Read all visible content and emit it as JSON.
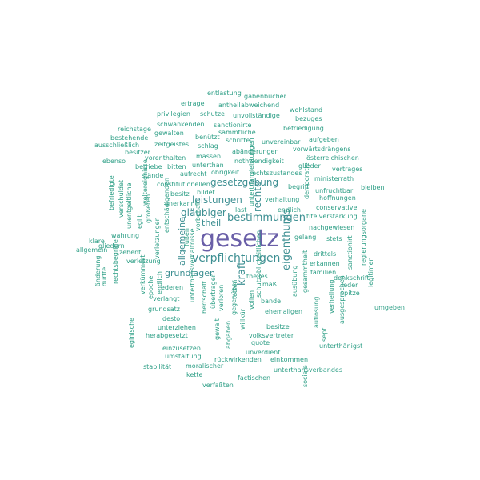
{
  "colors": {
    "primary": "#6a5fa8",
    "secondary": "#3d8f92",
    "default": "#2c9e85",
    "background": "#ffffff"
  },
  "words": [
    {
      "text": "gesetz",
      "color": "primary"
    },
    {
      "text": "verpflichtungen",
      "color": "secondary"
    },
    {
      "text": "bestimmungen",
      "color": "secondary"
    },
    {
      "text": "eigenthums",
      "color": "secondary"
    },
    {
      "text": "gesetzgebung",
      "color": "secondary"
    },
    {
      "text": "leistungen",
      "color": "secondary"
    },
    {
      "text": "gläubiger",
      "color": "secondary"
    },
    {
      "text": "kraft",
      "color": "secondary"
    },
    {
      "text": "rechte",
      "color": "secondary"
    },
    {
      "text": "grundlagen",
      "color": "secondary"
    },
    {
      "text": "allgemeine",
      "color": "secondary"
    },
    {
      "text": "theil",
      "color": "secondary"
    },
    {
      "text": "entlastung",
      "color": "default"
    },
    {
      "text": "gabenbücher",
      "color": "default"
    },
    {
      "text": "ertrage",
      "color": "default"
    },
    {
      "text": "antheil",
      "color": "default"
    },
    {
      "text": "abweichend",
      "color": "default"
    },
    {
      "text": "wohlstand",
      "color": "default"
    },
    {
      "text": "privilegien",
      "color": "default"
    },
    {
      "text": "schutze",
      "color": "default"
    },
    {
      "text": "unvollständige",
      "color": "default"
    },
    {
      "text": "bezuges",
      "color": "default"
    },
    {
      "text": "schwankenden",
      "color": "default"
    },
    {
      "text": "sanctionirte",
      "color": "default"
    },
    {
      "text": "reichstage",
      "color": "default"
    },
    {
      "text": "gewalten",
      "color": "default"
    },
    {
      "text": "sämmtliche",
      "color": "default"
    },
    {
      "text": "befriedigung",
      "color": "default"
    },
    {
      "text": "bestehende",
      "color": "default"
    },
    {
      "text": "benützt",
      "color": "default"
    },
    {
      "text": "schritte",
      "color": "default"
    },
    {
      "text": "unvereinbar",
      "color": "default"
    },
    {
      "text": "aufgeben",
      "color": "default"
    },
    {
      "text": "ausschließlich",
      "color": "default"
    },
    {
      "text": "zeitgeistes",
      "color": "default"
    },
    {
      "text": "schlag",
      "color": "default"
    },
    {
      "text": "vorwärtsdrängens",
      "color": "default"
    },
    {
      "text": "besitzer",
      "color": "default"
    },
    {
      "text": "abänderungen",
      "color": "default"
    },
    {
      "text": "österreichischen",
      "color": "default"
    },
    {
      "text": "ebenso",
      "color": "default"
    },
    {
      "text": "vorenthalten",
      "color": "default"
    },
    {
      "text": "massen",
      "color": "default"
    },
    {
      "text": "nothwendigkeit",
      "color": "default"
    },
    {
      "text": "glieder",
      "color": "default"
    },
    {
      "text": "betriebe",
      "color": "default"
    },
    {
      "text": "bitten",
      "color": "default"
    },
    {
      "text": "unterthan",
      "color": "default"
    },
    {
      "text": "vertrages",
      "color": "default"
    },
    {
      "text": "stände",
      "color": "default"
    },
    {
      "text": "aufrecht",
      "color": "default"
    },
    {
      "text": "obrigkeit",
      "color": "default"
    },
    {
      "text": "rechtszustandes",
      "color": "default"
    },
    {
      "text": "ministerrath",
      "color": "default"
    },
    {
      "text": "constitutionellen",
      "color": "default"
    },
    {
      "text": "begriff",
      "color": "default"
    },
    {
      "text": "unfruchtbar",
      "color": "default"
    },
    {
      "text": "bleiben",
      "color": "default"
    },
    {
      "text": "bildet",
      "color": "default"
    },
    {
      "text": "besitz",
      "color": "default"
    },
    {
      "text": "verhaltung",
      "color": "default"
    },
    {
      "text": "hoffnungen",
      "color": "default"
    },
    {
      "text": "enerkannt",
      "color": "default"
    },
    {
      "text": "conservative",
      "color": "default"
    },
    {
      "text": "endlich",
      "color": "default"
    },
    {
      "text": "last",
      "color": "default"
    },
    {
      "text": "titelverstärkung",
      "color": "default"
    },
    {
      "text": "nachgewiesen",
      "color": "default"
    },
    {
      "text": "gelang",
      "color": "default"
    },
    {
      "text": "stets",
      "color": "default"
    },
    {
      "text": "wahrung",
      "color": "default"
    },
    {
      "text": "klare",
      "color": "default"
    },
    {
      "text": "allgemein",
      "color": "default"
    },
    {
      "text": "zehent",
      "color": "default"
    },
    {
      "text": "verletzung",
      "color": "default"
    },
    {
      "text": "drittels",
      "color": "default"
    },
    {
      "text": "erkannen",
      "color": "default"
    },
    {
      "text": "familien",
      "color": "default"
    },
    {
      "text": "theiles",
      "color": "default"
    },
    {
      "text": "denkschrift",
      "color": "default"
    },
    {
      "text": "maß",
      "color": "default"
    },
    {
      "text": "leder",
      "color": "default"
    },
    {
      "text": "ederen",
      "color": "default"
    },
    {
      "text": "verlangt",
      "color": "default"
    },
    {
      "text": "spitze",
      "color": "default"
    },
    {
      "text": "bande",
      "color": "default"
    },
    {
      "text": "umgeben",
      "color": "default"
    },
    {
      "text": "grundsatz",
      "color": "default"
    },
    {
      "text": "desto",
      "color": "default"
    },
    {
      "text": "ehemaligen",
      "color": "default"
    },
    {
      "text": "unterziehen",
      "color": "default"
    },
    {
      "text": "besitze",
      "color": "default"
    },
    {
      "text": "herabgesetzt",
      "color": "default"
    },
    {
      "text": "quote",
      "color": "default"
    },
    {
      "text": "einzusetzen",
      "color": "default"
    },
    {
      "text": "unterthänigst",
      "color": "default"
    },
    {
      "text": "umstaltung",
      "color": "default"
    },
    {
      "text": "unverdient",
      "color": "default"
    },
    {
      "text": "volksvertreter",
      "color": "default"
    },
    {
      "text": "rückwirkenden",
      "color": "default"
    },
    {
      "text": "einkommen",
      "color": "default"
    },
    {
      "text": "stabilität",
      "color": "default"
    },
    {
      "text": "moralischer",
      "color": "default"
    },
    {
      "text": "unterthansverbandes",
      "color": "default"
    },
    {
      "text": "kette",
      "color": "default"
    },
    {
      "text": "factischen",
      "color": "default"
    },
    {
      "text": "verfaßten",
      "color": "default"
    },
    {
      "text": "gliedern",
      "color": "default"
    },
    {
      "text": "befriedigte",
      "color": "default"
    },
    {
      "text": "verschuldet",
      "color": "default"
    },
    {
      "text": "unentgeltliche",
      "color": "default"
    },
    {
      "text": "weltereignisse",
      "color": "default"
    },
    {
      "text": "egilt",
      "color": "default"
    },
    {
      "text": "größeren",
      "color": "default"
    },
    {
      "text": "verletzungen",
      "color": "default"
    },
    {
      "text": "entschädigenden",
      "color": "default"
    },
    {
      "text": "vorbehalt",
      "color": "default"
    },
    {
      "text": "fußen",
      "color": "default"
    },
    {
      "text": "änderung",
      "color": "default"
    },
    {
      "text": "dürfte",
      "color": "default"
    },
    {
      "text": "rechtsbegriffe",
      "color": "default"
    },
    {
      "text": "verkümmert",
      "color": "default"
    },
    {
      "text": "endlich",
      "color": "default"
    },
    {
      "text": "epoche",
      "color": "default"
    },
    {
      "text": "eginische",
      "color": "default"
    },
    {
      "text": "unterthansverhältnisse",
      "color": "default"
    },
    {
      "text": "herrschaft",
      "color": "default"
    },
    {
      "text": "übertragen",
      "color": "default"
    },
    {
      "text": "verloren",
      "color": "default"
    },
    {
      "text": "gewalt",
      "color": "default"
    },
    {
      "text": "abgaben",
      "color": "default"
    },
    {
      "text": "gegenüber",
      "color": "default"
    },
    {
      "text": "willkür",
      "color": "default"
    },
    {
      "text": "vollen",
      "color": "default"
    },
    {
      "text": "ausübung",
      "color": "default"
    },
    {
      "text": "gesammtheit",
      "color": "default"
    },
    {
      "text": "democratie",
      "color": "default"
    },
    {
      "text": "auflösung",
      "color": "default"
    },
    {
      "text": "sept",
      "color": "default"
    },
    {
      "text": "verheilung",
      "color": "default"
    },
    {
      "text": "ausgesprochen",
      "color": "default"
    },
    {
      "text": "sociale",
      "color": "default"
    },
    {
      "text": "sanctionirt",
      "color": "default"
    },
    {
      "text": "regierungsorgane",
      "color": "default"
    },
    {
      "text": "legitimen",
      "color": "default"
    },
    {
      "text": "unterthansleistungen",
      "color": "default"
    },
    {
      "text": "schutzobligkeitlichen",
      "color": "default"
    },
    {
      "text": "tetten",
      "color": "default"
    },
    {
      "text": "last",
      "color": "default"
    }
  ]
}
